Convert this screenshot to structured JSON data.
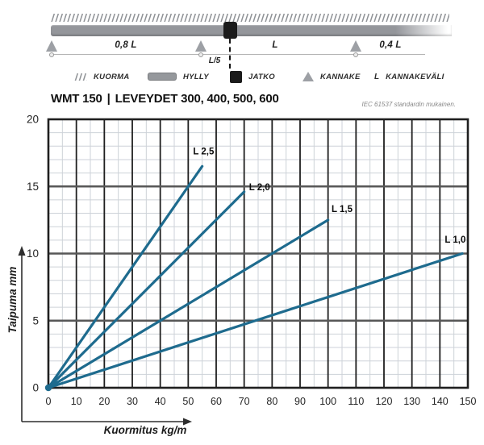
{
  "header": {
    "model": "WMT 150",
    "separator": "|",
    "widths": "LEVEYDET 300, 400, 500, 600",
    "standard_note": "IEC 61537 standardin mukainen."
  },
  "schematic": {
    "dim_labels": {
      "left_span": "0,8 L",
      "joint_offset": "L/5",
      "mid_span": "L",
      "right_span": "0,4 L"
    },
    "legend": [
      {
        "icon": "load-hatch-icon",
        "label": "KUORMA"
      },
      {
        "icon": "shelf-bar-icon",
        "label": "HYLLY"
      },
      {
        "icon": "joint-square-icon",
        "label": "JATKO"
      },
      {
        "icon": "bracket-triangle-icon",
        "label": "KANNAKE"
      },
      {
        "icon": "letter-symbol",
        "symbol": "L",
        "label": "KANNAKEVÄLI"
      }
    ]
  },
  "chart_data": {
    "type": "line",
    "title": "WMT 150 | LEVEYDET 300, 400, 500, 600",
    "xlabel": "Kuormitus kg/m",
    "ylabel": "Taipuma mm",
    "xlim": [
      0,
      150
    ],
    "ylim": [
      0,
      20
    ],
    "x_ticks": [
      0,
      10,
      20,
      30,
      40,
      50,
      60,
      70,
      80,
      90,
      100,
      110,
      120,
      130,
      140,
      150
    ],
    "y_ticks": [
      0,
      5,
      10,
      15,
      20
    ],
    "x_minor_step": 5,
    "y_minor_step": 1,
    "grid": true,
    "legend_position": "inline-labels",
    "line_color": "#1e6b8e",
    "series": [
      {
        "name": "L 2,5",
        "x": [
          0,
          55
        ],
        "y": [
          0,
          16.5
        ],
        "label_x": 55.5,
        "label_y": 17.4
      },
      {
        "name": "L 2,0",
        "x": [
          0,
          70
        ],
        "y": [
          0,
          14.6
        ],
        "label_x": 75.5,
        "label_y": 14.7
      },
      {
        "name": "L 1,5",
        "x": [
          0,
          100
        ],
        "y": [
          0,
          12.5
        ],
        "label_x": 105,
        "label_y": 13.1
      },
      {
        "name": "L 1,0",
        "x": [
          0,
          148
        ],
        "y": [
          0,
          10
        ],
        "label_x": 145.5,
        "label_y": 10.8
      }
    ]
  }
}
